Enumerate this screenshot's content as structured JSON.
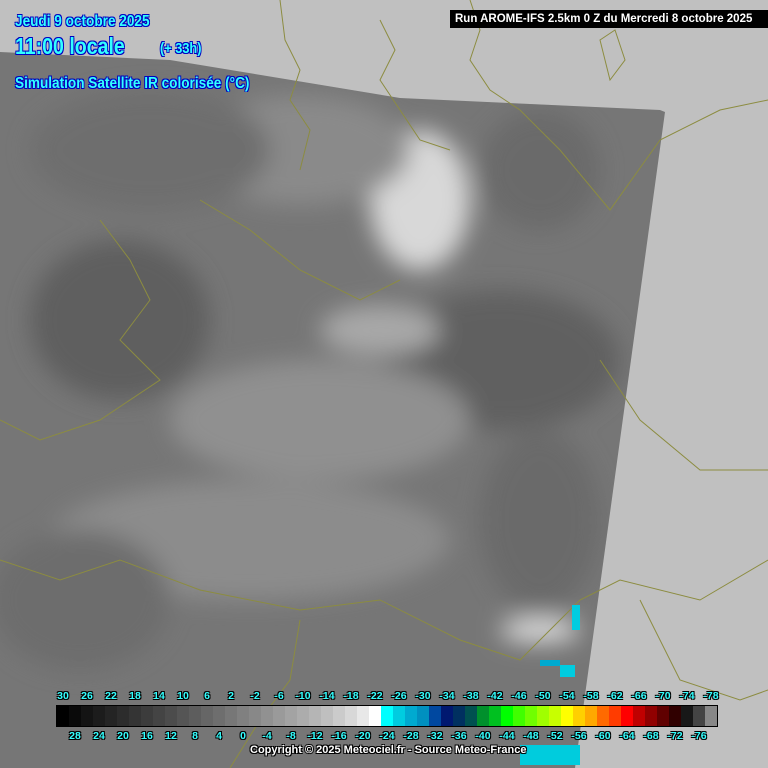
{
  "header": {
    "date": "Jeudi 9 octobre 2025",
    "time": "11:00 locale",
    "lead": "(+ 33h)",
    "product": "Simulation Satellite IR colorisée (°C)",
    "run": "Run AROME-IFS 2.5km 0 Z du Mercredi 8 octobre 2025"
  },
  "legend": {
    "unit": "°C",
    "values": [
      30,
      28,
      26,
      24,
      22,
      20,
      18,
      16,
      14,
      12,
      10,
      8,
      6,
      4,
      2,
      0,
      -2,
      -4,
      -6,
      -8,
      -10,
      -12,
      -14,
      -16,
      -18,
      -20,
      -22,
      -24,
      -26,
      -28,
      -30,
      -32,
      -34,
      -36,
      -38,
      -40,
      -42,
      -44,
      -46,
      -48,
      -50,
      -52,
      -54,
      -56,
      -58,
      -60,
      -62,
      -64,
      -66,
      -68,
      -70,
      -72,
      -74,
      -76,
      -78
    ],
    "colors": [
      "#000000",
      "#0a0a0a",
      "#141414",
      "#1c1c1c",
      "#242424",
      "#2c2c2c",
      "#343434",
      "#3c3c3c",
      "#444444",
      "#4c4c4c",
      "#555555",
      "#5d5d5d",
      "#666666",
      "#6e6e6e",
      "#777777",
      "#808080",
      "#888888",
      "#919191",
      "#9a9a9a",
      "#a3a3a3",
      "#acacac",
      "#b5b5b5",
      "#bfbfbf",
      "#cbcbcb",
      "#d8d8d8",
      "#e8e8e8",
      "#ffffff",
      "#00ffff",
      "#00cce0",
      "#00aad0",
      "#0090c0",
      "#0048a0",
      "#001870",
      "#003060",
      "#005050",
      "#00902c",
      "#00c020",
      "#00ff00",
      "#40ff00",
      "#70ff00",
      "#a0ff00",
      "#c8ff00",
      "#ffff00",
      "#ffd000",
      "#ffa800",
      "#ff6a00",
      "#ff3c00",
      "#ff0000",
      "#c00000",
      "#900000",
      "#600000",
      "#300000",
      "#181818",
      "#444444",
      "#888888",
      "#bbbbbb"
    ]
  },
  "copyright": "Copyright © 2025 Meteociel.fr - Source Meteo-France",
  "colors": {
    "header_text": "#33ffff",
    "background": "#c0c0c0",
    "coastline": "#8c8c40"
  }
}
